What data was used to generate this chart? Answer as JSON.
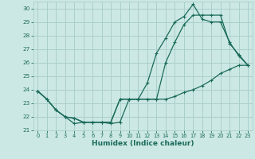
{
  "xlabel": "Humidex (Indice chaleur)",
  "xlim": [
    -0.5,
    23.5
  ],
  "ylim": [
    21,
    30.5
  ],
  "yticks": [
    21,
    22,
    23,
    24,
    25,
    26,
    27,
    28,
    29,
    30
  ],
  "xticks": [
    0,
    1,
    2,
    3,
    4,
    5,
    6,
    7,
    8,
    9,
    10,
    11,
    12,
    13,
    14,
    15,
    16,
    17,
    18,
    19,
    20,
    21,
    22,
    23
  ],
  "bg_color": "#cce8e4",
  "grid_color": "#aacfcb",
  "line_color": "#1a6b5a",
  "line1_x": [
    0,
    1,
    2,
    3,
    4,
    5,
    6,
    7,
    8,
    9,
    10,
    11,
    12,
    13,
    14,
    15,
    16,
    17,
    18,
    19,
    20,
    21,
    22,
    23
  ],
  "line1_y": [
    23.9,
    23.3,
    22.5,
    22.0,
    21.9,
    21.6,
    21.6,
    21.6,
    21.6,
    23.3,
    23.3,
    23.3,
    24.5,
    26.7,
    27.8,
    29.0,
    29.4,
    30.3,
    29.2,
    29.0,
    29.0,
    27.5,
    26.5,
    25.8
  ],
  "line2_x": [
    0,
    1,
    2,
    3,
    4,
    5,
    6,
    7,
    8,
    9,
    10,
    11,
    12,
    13,
    14,
    15,
    16,
    17,
    18,
    19,
    20,
    21,
    22,
    23
  ],
  "line2_y": [
    23.9,
    23.3,
    22.5,
    22.0,
    21.9,
    21.6,
    21.6,
    21.6,
    21.6,
    23.3,
    23.3,
    23.3,
    23.3,
    23.3,
    26.0,
    27.5,
    28.8,
    29.5,
    29.5,
    29.5,
    29.5,
    27.4,
    26.6,
    25.8
  ],
  "line3_x": [
    0,
    1,
    2,
    3,
    4,
    5,
    6,
    7,
    8,
    9,
    10,
    11,
    12,
    13,
    14,
    15,
    16,
    17,
    18,
    19,
    20,
    21,
    22,
    23
  ],
  "line3_y": [
    23.9,
    23.3,
    22.5,
    22.0,
    21.5,
    21.6,
    21.6,
    21.6,
    21.5,
    21.6,
    23.3,
    23.3,
    23.3,
    23.3,
    23.3,
    23.5,
    23.8,
    24.0,
    24.3,
    24.7,
    25.2,
    25.5,
    25.8,
    25.8
  ]
}
